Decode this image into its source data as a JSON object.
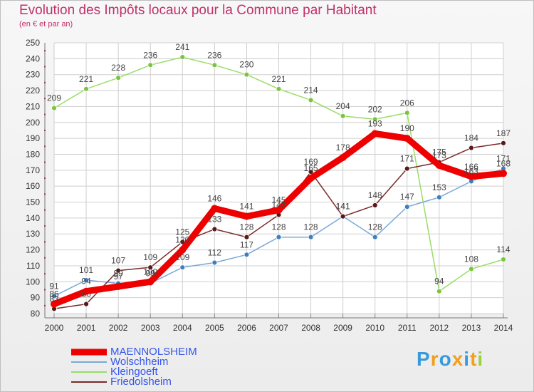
{
  "header": {
    "title": "Evolution des Impôts locaux pour la Commune par Habitant",
    "subtitle": "(en € et par an)"
  },
  "colors": {
    "title": "#c0306a",
    "grid": "#cfcfcf",
    "axis_text": "#333333",
    "tick_marks": "#cc0000"
  },
  "chart_data": {
    "type": "line",
    "title": "Evolution des Impôts locaux pour la Commune par Habitant",
    "subtitle": "(en € et par an)",
    "x": [
      2000,
      2001,
      2002,
      2003,
      2004,
      2005,
      2006,
      2007,
      2008,
      2009,
      2010,
      2011,
      2012,
      2013,
      2014
    ],
    "xlabel": "",
    "ylabel": "",
    "ylim": [
      80,
      250
    ],
    "yticks": [
      80,
      90,
      100,
      110,
      120,
      130,
      140,
      150,
      160,
      170,
      180,
      190,
      200,
      210,
      220,
      230,
      240,
      250
    ],
    "grid": true,
    "legend_position": "bottom-left",
    "series": [
      {
        "name": "Kleingoeft",
        "color": "#99dd66",
        "marker": "#7cc440",
        "width": 1.5,
        "label_dy": -10,
        "values": [
          209,
          221,
          228,
          236,
          241,
          236,
          230,
          221,
          214,
          204,
          202,
          206,
          94,
          108,
          114
        ]
      },
      {
        "name": "Wolschheim",
        "color": "#7aa8d8",
        "marker": "#3d7fc0",
        "width": 1.5,
        "label_dy": -10,
        "values": [
          91,
          101,
          99,
          99,
          109,
          112,
          117,
          128,
          128,
          141,
          128,
          147,
          153,
          163,
          171
        ]
      },
      {
        "name": "Friedolsheim",
        "color": "#7a2a2a",
        "marker": "#5a1818",
        "width": 1.5,
        "label_dy": -10,
        "values": [
          83,
          86,
          107,
          109,
          125,
          133,
          128,
          142,
          169,
          141,
          148,
          171,
          175,
          184,
          187
        ]
      },
      {
        "name": "MAENNOLSHEIM",
        "color": "#ee0000",
        "marker": "#ee0000",
        "width": 9,
        "label_dy": -10,
        "values": [
          86,
          94,
          97,
          100,
          120,
          146,
          141,
          145,
          165,
          178,
          193,
          190,
          173,
          166,
          168
        ]
      }
    ],
    "legend_order": [
      "MAENNOLSHEIM",
      "Wolschheim",
      "Kleingoeft",
      "Friedolsheim"
    ]
  },
  "branding": {
    "logo_text": "Proxiti",
    "logo_colors": [
      "#3a9ad9",
      "#f0a020",
      "#3a9ad9",
      "#f0a020",
      "#3a9ad9",
      "#f0a020",
      "#9bd13e"
    ]
  }
}
